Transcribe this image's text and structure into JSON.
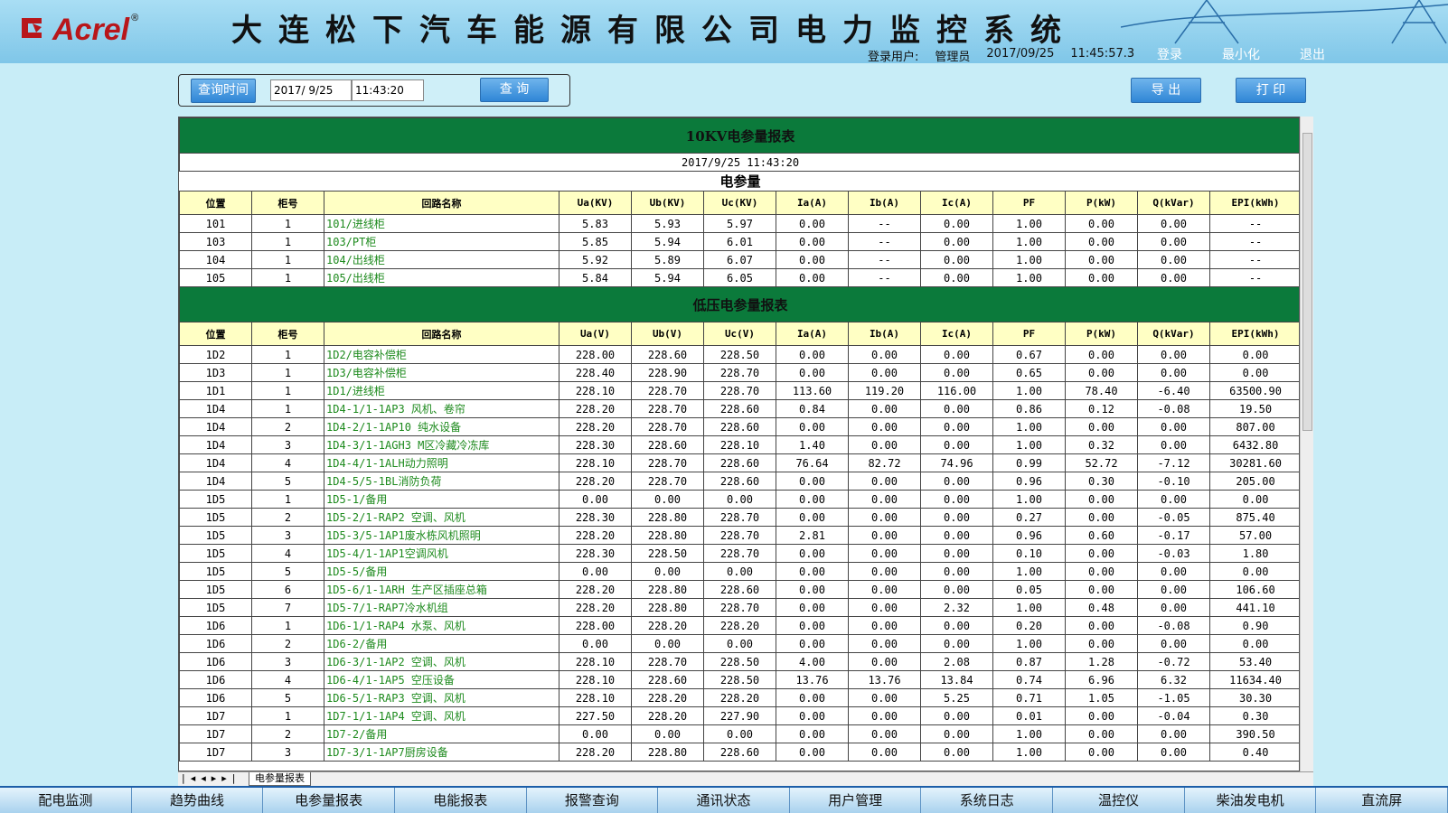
{
  "header": {
    "logo": "Acrel",
    "logo_mark": "®",
    "title": "大连松下汽车能源有限公司电力监控系统",
    "user_label": "登录用户:",
    "user": "管理员",
    "date": "2017/09/25",
    "time": "11:45:57.3",
    "buttons": [
      "登录",
      "最小化",
      "退出"
    ]
  },
  "query": {
    "label": "查询时间",
    "date": "2017/ 9/25",
    "time": "11:43:20",
    "search": "查 询",
    "export": "导 出",
    "print": "打 印"
  },
  "report": {
    "hv": {
      "title": "10KV电参量报表",
      "date": "2017/9/25 11:43:20",
      "subtitle": "电参量",
      "headers": [
        "位置",
        "柜号",
        "回路名称",
        "Ua(KV)",
        "Ub(KV)",
        "Uc(KV)",
        "Ia(A)",
        "Ib(A)",
        "Ic(A)",
        "PF",
        "P(kW)",
        "Q(kVar)",
        "EPI(kWh)"
      ],
      "rows": [
        [
          "101",
          "1",
          "101/进线柜",
          "5.83",
          "5.93",
          "5.97",
          "0.00",
          "--",
          "0.00",
          "1.00",
          "0.00",
          "0.00",
          "--"
        ],
        [
          "103",
          "1",
          "103/PT柜",
          "5.85",
          "5.94",
          "6.01",
          "0.00",
          "--",
          "0.00",
          "1.00",
          "0.00",
          "0.00",
          "--"
        ],
        [
          "104",
          "1",
          "104/出线柜",
          "5.92",
          "5.89",
          "6.07",
          "0.00",
          "--",
          "0.00",
          "1.00",
          "0.00",
          "0.00",
          "--"
        ],
        [
          "105",
          "1",
          "105/出线柜",
          "5.84",
          "5.94",
          "6.05",
          "0.00",
          "--",
          "0.00",
          "1.00",
          "0.00",
          "0.00",
          "--"
        ]
      ]
    },
    "lv": {
      "title": "低压电参量报表",
      "headers": [
        "位置",
        "柜号",
        "回路名称",
        "Ua(V)",
        "Ub(V)",
        "Uc(V)",
        "Ia(A)",
        "Ib(A)",
        "Ic(A)",
        "PF",
        "P(kW)",
        "Q(kVar)",
        "EPI(kWh)"
      ],
      "rows": [
        [
          "1D2",
          "1",
          "1D2/电容补偿柜",
          "228.00",
          "228.60",
          "228.50",
          "0.00",
          "0.00",
          "0.00",
          "0.67",
          "0.00",
          "0.00",
          "0.00"
        ],
        [
          "1D3",
          "1",
          "1D3/电容补偿柜",
          "228.40",
          "228.90",
          "228.70",
          "0.00",
          "0.00",
          "0.00",
          "0.65",
          "0.00",
          "0.00",
          "0.00"
        ],
        [
          "1D1",
          "1",
          "1D1/进线柜",
          "228.10",
          "228.70",
          "228.70",
          "113.60",
          "119.20",
          "116.00",
          "1.00",
          "78.40",
          "-6.40",
          "63500.90"
        ],
        [
          "1D4",
          "1",
          "1D4-1/1-1AP3 风机、卷帘",
          "228.20",
          "228.70",
          "228.60",
          "0.84",
          "0.00",
          "0.00",
          "0.86",
          "0.12",
          "-0.08",
          "19.50"
        ],
        [
          "1D4",
          "2",
          "1D4-2/1-1AP10 纯水设备",
          "228.20",
          "228.70",
          "228.60",
          "0.00",
          "0.00",
          "0.00",
          "1.00",
          "0.00",
          "0.00",
          "807.00"
        ],
        [
          "1D4",
          "3",
          "1D4-3/1-1AGH3 M区冷藏冷冻库",
          "228.30",
          "228.60",
          "228.10",
          "1.40",
          "0.00",
          "0.00",
          "1.00",
          "0.32",
          "0.00",
          "6432.80"
        ],
        [
          "1D4",
          "4",
          "1D4-4/1-1ALH动力照明",
          "228.10",
          "228.70",
          "228.60",
          "76.64",
          "82.72",
          "74.96",
          "0.99",
          "52.72",
          "-7.12",
          "30281.60"
        ],
        [
          "1D4",
          "5",
          "1D4-5/5-1BL消防负荷",
          "228.20",
          "228.70",
          "228.60",
          "0.00",
          "0.00",
          "0.00",
          "0.96",
          "0.30",
          "-0.10",
          "205.00"
        ],
        [
          "1D5",
          "1",
          "1D5-1/备用",
          "0.00",
          "0.00",
          "0.00",
          "0.00",
          "0.00",
          "0.00",
          "1.00",
          "0.00",
          "0.00",
          "0.00"
        ],
        [
          "1D5",
          "2",
          "1D5-2/1-RAP2 空调、风机",
          "228.30",
          "228.80",
          "228.70",
          "0.00",
          "0.00",
          "0.00",
          "0.27",
          "0.00",
          "-0.05",
          "875.40"
        ],
        [
          "1D5",
          "3",
          "1D5-3/5-1AP1废水栋风机照明",
          "228.20",
          "228.80",
          "228.70",
          "2.81",
          "0.00",
          "0.00",
          "0.96",
          "0.60",
          "-0.17",
          "57.00"
        ],
        [
          "1D5",
          "4",
          "1D5-4/1-1AP1空调风机",
          "228.30",
          "228.50",
          "228.70",
          "0.00",
          "0.00",
          "0.00",
          "0.10",
          "0.00",
          "-0.03",
          "1.80"
        ],
        [
          "1D5",
          "5",
          "1D5-5/备用",
          "0.00",
          "0.00",
          "0.00",
          "0.00",
          "0.00",
          "0.00",
          "1.00",
          "0.00",
          "0.00",
          "0.00"
        ],
        [
          "1D5",
          "6",
          "1D5-6/1-1ARH 生产区插座总箱",
          "228.20",
          "228.80",
          "228.60",
          "0.00",
          "0.00",
          "0.00",
          "0.05",
          "0.00",
          "0.00",
          "106.60"
        ],
        [
          "1D5",
          "7",
          "1D5-7/1-RAP7冷水机组",
          "228.20",
          "228.80",
          "228.70",
          "0.00",
          "0.00",
          "2.32",
          "1.00",
          "0.48",
          "0.00",
          "441.10"
        ],
        [
          "1D6",
          "1",
          "1D6-1/1-RAP4 水泵、风机",
          "228.00",
          "228.20",
          "228.20",
          "0.00",
          "0.00",
          "0.00",
          "0.20",
          "0.00",
          "-0.08",
          "0.90"
        ],
        [
          "1D6",
          "2",
          "1D6-2/备用",
          "0.00",
          "0.00",
          "0.00",
          "0.00",
          "0.00",
          "0.00",
          "1.00",
          "0.00",
          "0.00",
          "0.00"
        ],
        [
          "1D6",
          "3",
          "1D6-3/1-1AP2 空调、风机",
          "228.10",
          "228.70",
          "228.50",
          "4.00",
          "0.00",
          "2.08",
          "0.87",
          "1.28",
          "-0.72",
          "53.40"
        ],
        [
          "1D6",
          "4",
          "1D6-4/1-1AP5 空压设备",
          "228.10",
          "228.60",
          "228.50",
          "13.76",
          "13.76",
          "13.84",
          "0.74",
          "6.96",
          "6.32",
          "11634.40"
        ],
        [
          "1D6",
          "5",
          "1D6-5/1-RAP3 空调、风机",
          "228.10",
          "228.20",
          "228.20",
          "0.00",
          "0.00",
          "5.25",
          "0.71",
          "1.05",
          "-1.05",
          "30.30"
        ],
        [
          "1D7",
          "1",
          "1D7-1/1-1AP4 空调、风机",
          "227.50",
          "228.20",
          "227.90",
          "0.00",
          "0.00",
          "0.00",
          "0.01",
          "0.00",
          "-0.04",
          "0.30"
        ],
        [
          "1D7",
          "2",
          "1D7-2/备用",
          "0.00",
          "0.00",
          "0.00",
          "0.00",
          "0.00",
          "0.00",
          "1.00",
          "0.00",
          "0.00",
          "390.50"
        ],
        [
          "1D7",
          "3",
          "1D7-3/1-1AP7厨房设备",
          "228.20",
          "228.80",
          "228.60",
          "0.00",
          "0.00",
          "0.00",
          "1.00",
          "0.00",
          "0.00",
          "0.40"
        ]
      ]
    }
  },
  "sheet_tab": "电参量报表",
  "nav": [
    "配电监测",
    "趋势曲线",
    "电参量报表",
    "电能报表",
    "报警查询",
    "通讯状态",
    "用户管理",
    "系统日志",
    "温控仪",
    "柴油发电机",
    "直流屏"
  ]
}
